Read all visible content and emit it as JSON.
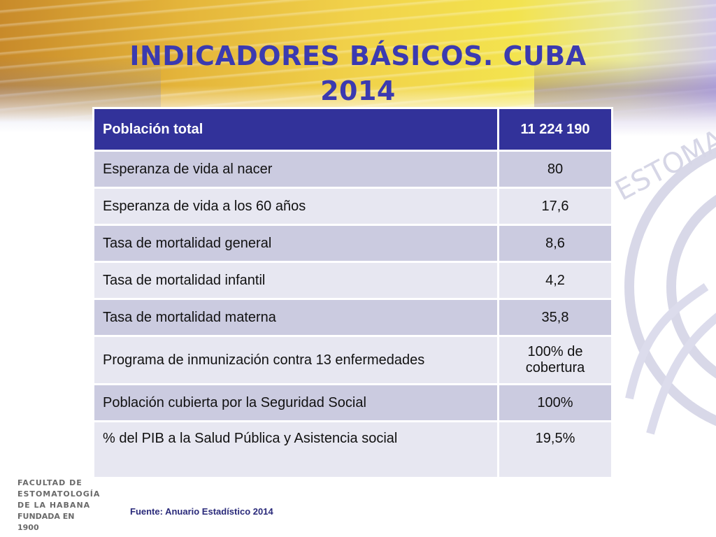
{
  "title": {
    "line1": "INDICADORES BÁSICOS. CUBA",
    "line2": "2014"
  },
  "table": {
    "header": {
      "label": "Población total",
      "value": "11 224 190"
    },
    "rows": [
      {
        "label": "Esperanza de vida al nacer",
        "value": "80"
      },
      {
        "label": "Esperanza de vida a los 60 años",
        "value": "17,6"
      },
      {
        "label": "Tasa de mortalidad general",
        "value": "8,6"
      },
      {
        "label": "Tasa de mortalidad infantil",
        "value": "4,2"
      },
      {
        "label": "Tasa de mortalidad materna",
        "value": "35,8"
      },
      {
        "label": "Programa de inmunización contra 13 enfermedades",
        "value": "100% de cobertura"
      },
      {
        "label": "Población cubierta por la Seguridad Social",
        "value": "100%"
      },
      {
        "label": "% del PIB a la Salud Pública y Asistencia social",
        "value": "19,5%"
      }
    ]
  },
  "logo": {
    "line1": "FACULTAD DE",
    "line2": "ESTOMATOLOGÍA",
    "line3": "DE LA HABANA",
    "line4": "FUNDADA EN 1900"
  },
  "source": "Fuente: Anuario Estadístico 2014",
  "seal_text": "ESTOMA",
  "colors": {
    "title": "#3b3ab0",
    "header_bg": "#32329a",
    "row_odd": "#cbcbe0",
    "row_even": "#e7e7f1"
  }
}
